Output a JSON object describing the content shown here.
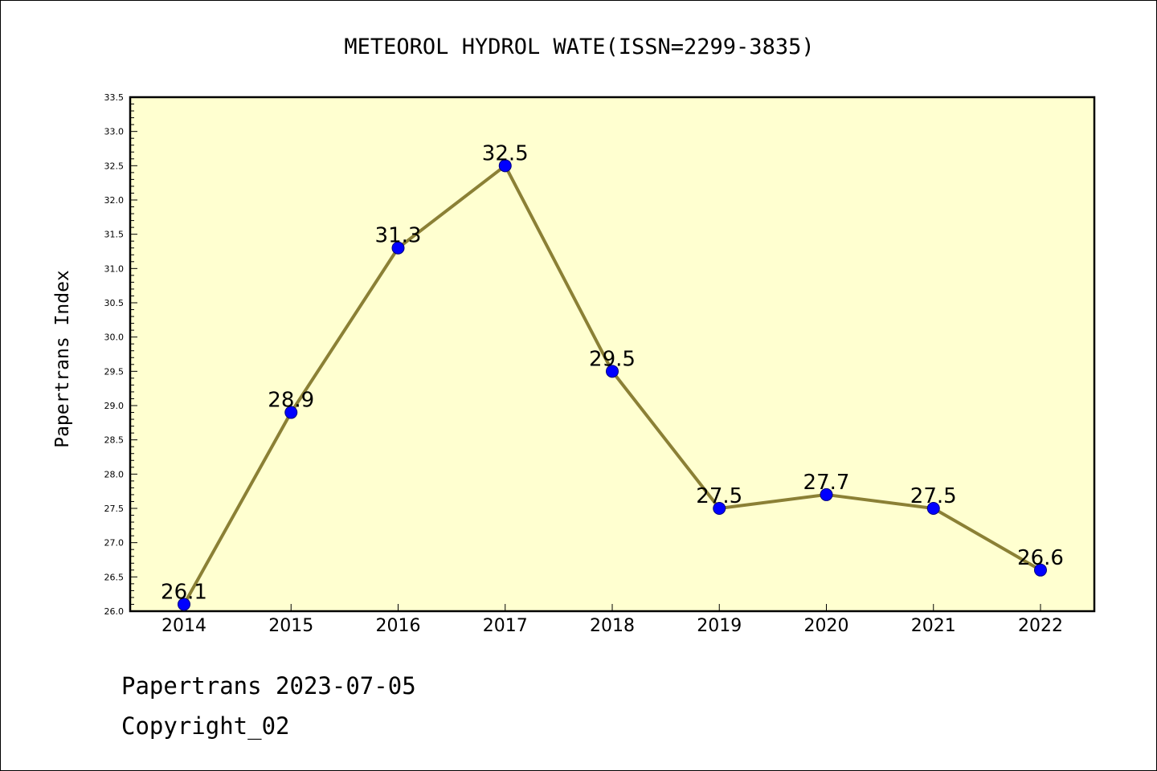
{
  "chart_data": {
    "type": "line",
    "title": "METEOROL HYDROL WATE(ISSN=2299-3835)",
    "ylabel": "Papertrans Index",
    "xlabel": "",
    "categories": [
      "2014",
      "2015",
      "2016",
      "2017",
      "2018",
      "2019",
      "2020",
      "2021",
      "2022"
    ],
    "series": [
      {
        "values": [
          26.1,
          28.9,
          31.3,
          32.5,
          29.5,
          27.5,
          27.7,
          27.5,
          26.6
        ],
        "data_labels": [
          "26.1",
          "28.9",
          "31.3",
          "32.5",
          "29.5",
          "27.5",
          "27.7",
          "27.5",
          "26.6"
        ]
      }
    ],
    "ylim": [
      26.0,
      33.5
    ],
    "y_ticks": [
      "26.0",
      "26.5",
      "27.0",
      "27.5",
      "28.0",
      "28.5",
      "29.0",
      "29.5",
      "30.0",
      "30.5",
      "31.0",
      "31.5",
      "32.0",
      "32.5",
      "33.0",
      "33.5"
    ],
    "grid": false,
    "colors": {
      "plot_background": "#ffffd0",
      "line": "#8b8035",
      "marker": "#0000ff"
    }
  },
  "footer": {
    "date_line": "Papertrans 2023-07-05",
    "copyright_line": "Copyright_02"
  }
}
